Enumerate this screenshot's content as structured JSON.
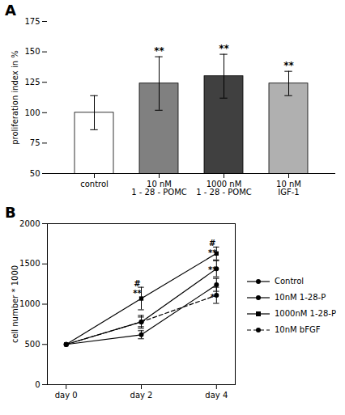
{
  "chart_data": [
    {
      "type": "bar",
      "panel_label": "A",
      "categories": [
        "control",
        "10 nM\n1 - 28 - POMC",
        "1000 nM\n1 - 28 - POMC",
        "10 nM\nIGF-1"
      ],
      "values": [
        100,
        124,
        130,
        124
      ],
      "errors": [
        14,
        22,
        18,
        10
      ],
      "colors": [
        "#ffffff",
        "#808080",
        "#404040",
        "#b0b0b0"
      ],
      "ylabel": "proliferation index in %",
      "ylim": [
        50,
        175
      ],
      "yticks": [
        50,
        75,
        100,
        125,
        150,
        175
      ],
      "significance": [
        null,
        "**",
        "**",
        "**"
      ]
    },
    {
      "type": "line",
      "panel_label": "B",
      "x": [
        0,
        2,
        4
      ],
      "xlim": [
        -0.5,
        4.5
      ],
      "xticks": [
        {
          "value": 0,
          "label": "day 0"
        },
        {
          "value": 2,
          "label": "day 2"
        },
        {
          "value": 4,
          "label": "day 4"
        }
      ],
      "ylabel": "cell number * 1000",
      "ylim": [
        0,
        2000
      ],
      "yticks": [
        0,
        500,
        1000,
        1500,
        2000
      ],
      "series": [
        {
          "name": "Control",
          "color": "#000000",
          "marker": "circle",
          "line_style": "solid",
          "values": [
            500,
            620,
            1240
          ],
          "errors": [
            0,
            50,
            80
          ]
        },
        {
          "name": "10nM 1-28-P",
          "color": "#000000",
          "marker": "circle",
          "line_style": "solid",
          "values": [
            500,
            780,
            1440
          ],
          "errors": [
            0,
            60,
            100
          ]
        },
        {
          "name": "1000nM 1-28-P",
          "color": "#000000",
          "marker": "square",
          "line_style": "solid",
          "values": [
            500,
            1070,
            1630
          ],
          "errors": [
            0,
            140,
            80
          ]
        },
        {
          "name": "10nM bFGF",
          "color": "#000000",
          "marker": "circle",
          "line_style": "dashed",
          "values": [
            500,
            780,
            1110
          ],
          "errors": [
            0,
            80,
            100
          ]
        }
      ],
      "annotations": [
        {
          "text": "#",
          "x": 2,
          "y": 1225
        },
        {
          "text": "**",
          "x": 2,
          "y": 1100
        },
        {
          "text": "#",
          "x": 4,
          "y": 1725
        },
        {
          "text": "**",
          "x": 4,
          "y": 1600
        },
        {
          "text": "**",
          "x": 4,
          "y": 1390
        },
        {
          "text": "*",
          "x": 4,
          "y": 1055
        }
      ],
      "legend": "right"
    }
  ]
}
